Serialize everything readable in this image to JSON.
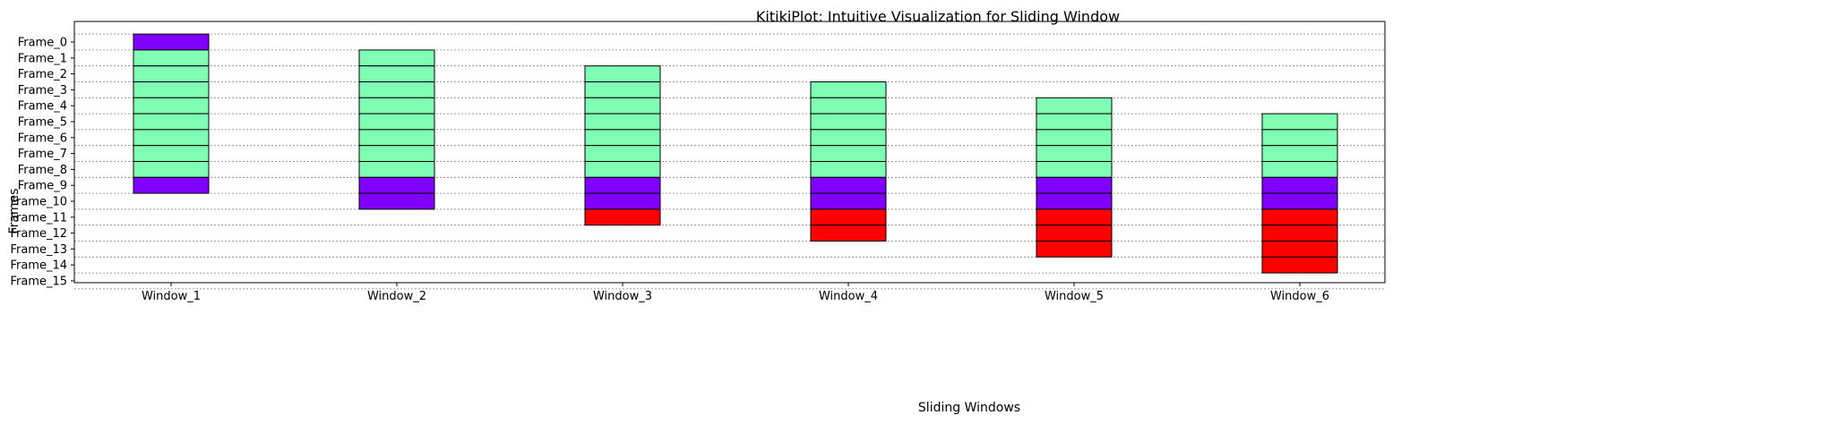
{
  "chart_data": {
    "type": "bar",
    "title": "KitikiPlot: Intuitive Visualization for Sliding Window",
    "xlabel": "Sliding Windows",
    "ylabel": "Frames",
    "categories": [
      "Window_1",
      "Window_2",
      "Window_3",
      "Window_4",
      "Window_5",
      "Window_6"
    ],
    "frames": [
      "Frame_0",
      "Frame_1",
      "Frame_2",
      "Frame_3",
      "Frame_4",
      "Frame_5",
      "Frame_6",
      "Frame_7",
      "Frame_8",
      "Frame_9",
      "Frame_10",
      "Frame_11",
      "Frame_12",
      "Frame_13",
      "Frame_14",
      "Frame_15"
    ],
    "ylim": [
      -0.5,
      15.5
    ],
    "grid": true,
    "colors": {
      "a": "#7f00ff",
      "b": "#80ffb4",
      "c": "#ff0000",
      "edge": "#000000",
      "grid": "#808080"
    },
    "windows": [
      {
        "name": "Window_1",
        "cells": [
          "a",
          "b",
          "b",
          "b",
          "b",
          "b",
          "b",
          "b",
          "b",
          "a"
        ]
      },
      {
        "name": "Window_2",
        "cells": [
          "b",
          "b",
          "b",
          "b",
          "b",
          "b",
          "b",
          "b",
          "a",
          "a"
        ]
      },
      {
        "name": "Window_3",
        "cells": [
          "b",
          "b",
          "b",
          "b",
          "b",
          "b",
          "b",
          "a",
          "a",
          "c"
        ]
      },
      {
        "name": "Window_4",
        "cells": [
          "b",
          "b",
          "b",
          "b",
          "b",
          "b",
          "a",
          "a",
          "c",
          "c"
        ]
      },
      {
        "name": "Window_5",
        "cells": [
          "b",
          "b",
          "b",
          "b",
          "b",
          "a",
          "a",
          "c",
          "c",
          "c"
        ]
      },
      {
        "name": "Window_6",
        "cells": [
          "b",
          "b",
          "b",
          "b",
          "a",
          "a",
          "c",
          "c",
          "c",
          "c"
        ]
      }
    ]
  }
}
